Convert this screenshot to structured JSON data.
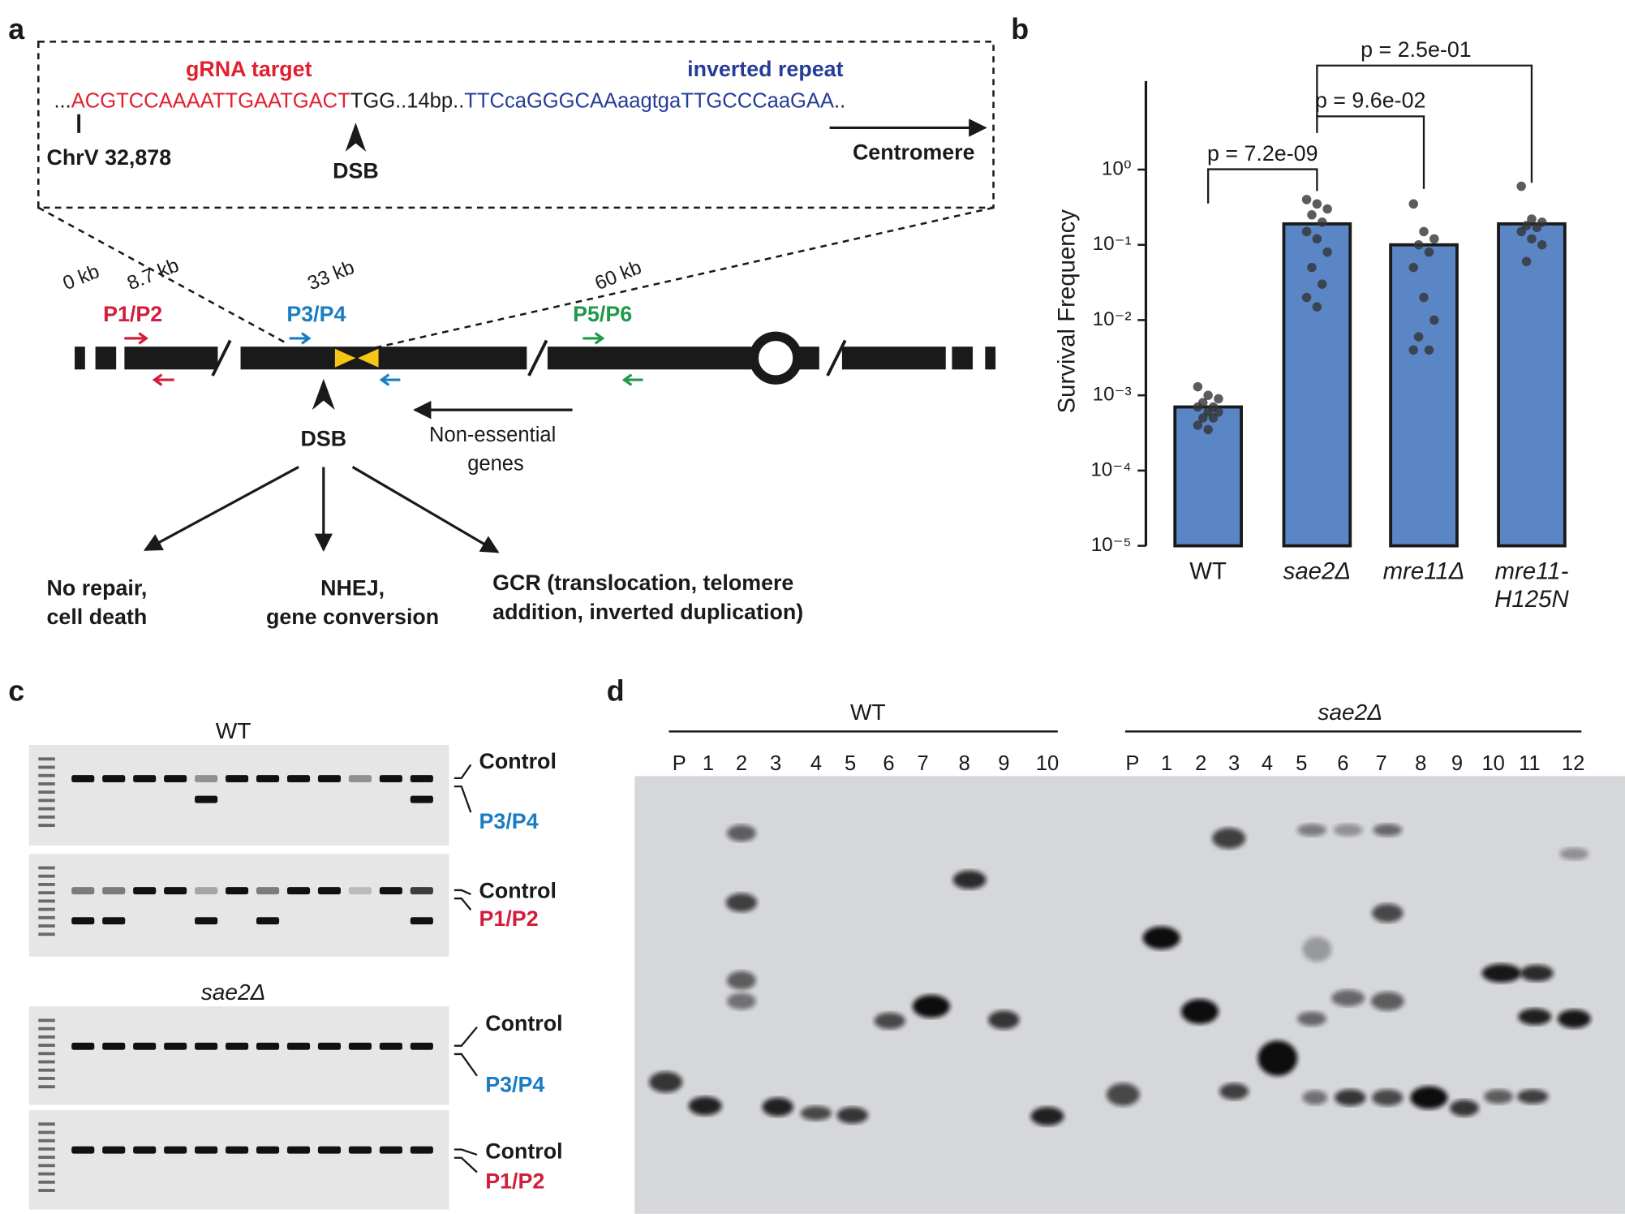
{
  "panel_a": {
    "label": "a",
    "gRNA_label": "gRNA target",
    "repeat_label": "inverted repeat",
    "sequence": [
      "...",
      "ACGTCCAAAATTGAATGACT",
      "TGG..14bp..",
      "TTCcaGGGCAAaagtgaTTGCCCaaGAA",
      ".."
    ],
    "position": "ChrV 32,878",
    "dsb": "DSB",
    "centromere": "Centromere",
    "distances": [
      "0 kb",
      "8.7 kb",
      "33 kb",
      "60 kb"
    ],
    "primers": [
      "P1/P2",
      "P3/P4",
      "P5/P6"
    ],
    "dsb_lower": "DSB",
    "genes_lines": [
      "Non-essential",
      "genes"
    ],
    "outcomes": [
      [
        "No repair,",
        "cell death"
      ],
      [
        "NHEJ,",
        "gene conversion"
      ],
      [
        "GCR (translocation, telomere",
        "addition, inverted duplication)"
      ]
    ]
  },
  "chart_data": {
    "type": "bar",
    "panel_label": "b",
    "ylabel": "Survival Frequency",
    "categories": [
      "WT",
      "sae2Δ",
      "mre11Δ",
      "mre11-H125N"
    ],
    "values": [
      0.0007,
      0.19,
      0.1,
      0.19
    ],
    "color": "#5b86c5",
    "points": [
      [
        0.0013,
        0.001,
        0.0009,
        0.0008,
        0.0007,
        0.0007,
        0.0006,
        0.0006,
        0.0005,
        0.0005,
        0.0004,
        0.00035
      ],
      [
        0.4,
        0.35,
        0.3,
        0.25,
        0.2,
        0.15,
        0.12,
        0.08,
        0.05,
        0.03,
        0.02,
        0.015
      ],
      [
        0.35,
        0.15,
        0.12,
        0.1,
        0.08,
        0.05,
        0.02,
        0.01,
        0.006,
        0.004,
        0.004
      ],
      [
        0.6,
        0.22,
        0.2,
        0.18,
        0.17,
        0.15,
        0.12,
        0.1,
        0.06
      ]
    ],
    "point_color": "#333333",
    "log_scale": true,
    "ylim": [
      1e-05,
      15
    ],
    "yticks": [
      {
        "value": 1e-05,
        "label": "10⁻⁵"
      },
      {
        "value": 0.0001,
        "label": "10⁻⁴"
      },
      {
        "value": 0.001,
        "label": "10⁻³"
      },
      {
        "value": 0.01,
        "label": "10⁻²"
      },
      {
        "value": 0.1,
        "label": "10⁻¹"
      },
      {
        "value": 1,
        "label": "10⁰"
      }
    ],
    "annotations": [
      "p = 7.2e-09",
      "p = 9.6e-02",
      "p = 2.5e-01"
    ]
  },
  "panel_c": {
    "label": "c",
    "groups": [
      {
        "title": "WT",
        "gels": [
          [
            "Control",
            "P3/P4"
          ],
          [
            "Control",
            "P1/P2"
          ]
        ]
      },
      {
        "title": "sae2Δ",
        "gels": [
          [
            "Control",
            "P3/P4"
          ],
          [
            "Control",
            "P1/P2"
          ]
        ]
      }
    ]
  },
  "panel_d": {
    "label": "d",
    "groups": [
      {
        "title": "WT",
        "lanes": [
          "P",
          "1",
          "2",
          "3",
          "4",
          "5",
          "6",
          "7",
          "8",
          "9",
          "10"
        ]
      },
      {
        "title": "sae2Δ",
        "lanes": [
          "P",
          "1",
          "2",
          "3",
          "4",
          "5",
          "6",
          "7",
          "8",
          "9",
          "10",
          "11",
          "12"
        ]
      }
    ]
  }
}
